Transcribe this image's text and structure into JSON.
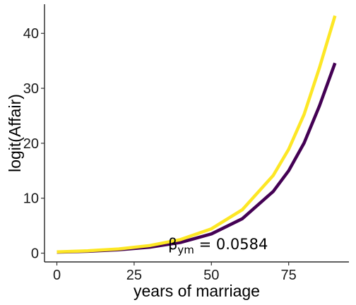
{
  "chart_data": {
    "type": "line",
    "title": "",
    "xlabel": "years of marriage",
    "ylabel": "logit(Affair)",
    "xlim": [
      -4,
      94.5
    ],
    "ylim": [
      -1.6,
      45.3
    ],
    "xticks": [
      0,
      25,
      50,
      75
    ],
    "yticks": [
      0,
      10,
      20,
      30,
      40
    ],
    "grid": false,
    "legend": "none",
    "annotation": {
      "symbol": "β",
      "subscript": "ym",
      "text": " = 0.0584",
      "x": 36,
      "y": 0.7
    },
    "series": [
      {
        "color": "#440154",
        "x": [
          0,
          10,
          20,
          30,
          40,
          50,
          60,
          70,
          75,
          80,
          85,
          90
        ],
        "y": [
          0.19,
          0.34,
          0.61,
          1.09,
          1.95,
          3.5,
          6.27,
          11.22,
          15.0,
          20.07,
          26.85,
          34.6
        ]
      },
      {
        "color": "#FDE725",
        "x": [
          0,
          10,
          20,
          30,
          40,
          50,
          60,
          70,
          75,
          80,
          85,
          90
        ],
        "y": [
          0.24,
          0.43,
          0.77,
          1.38,
          2.47,
          4.42,
          7.9,
          14.14,
          18.91,
          25.28,
          33.8,
          43.2
        ]
      }
    ]
  }
}
